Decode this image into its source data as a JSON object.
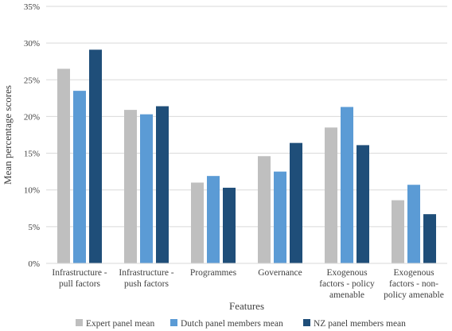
{
  "chart_data": {
    "type": "bar",
    "title": "",
    "xlabel": "Features",
    "ylabel": "Mean percentage scores",
    "ylim": [
      0,
      35
    ],
    "yticks": [
      0,
      5,
      10,
      15,
      20,
      25,
      30,
      35
    ],
    "ytick_suffix": "%",
    "grid": true,
    "legend_position": "bottom",
    "categories": [
      [
        "Infrastructure -",
        "pull factors"
      ],
      [
        "Infrastructure -",
        "push factors"
      ],
      [
        "Programmes"
      ],
      [
        "Governance"
      ],
      [
        "Exogenous",
        "factors - policy",
        "amenable"
      ],
      [
        "Exogenous",
        "factors - non-",
        "policy amenable"
      ]
    ],
    "series": [
      {
        "name": "Expert panel mean",
        "color": "#bfbfbf",
        "values": [
          26.5,
          20.9,
          11.0,
          14.6,
          18.5,
          8.6
        ]
      },
      {
        "name": "Dutch panel members mean",
        "color": "#5b9bd5",
        "values": [
          23.5,
          20.3,
          11.9,
          12.5,
          21.3,
          10.7
        ]
      },
      {
        "name": "NZ panel members mean",
        "color": "#1f4e79",
        "values": [
          29.1,
          21.4,
          10.3,
          16.4,
          16.1,
          6.7
        ]
      }
    ]
  }
}
